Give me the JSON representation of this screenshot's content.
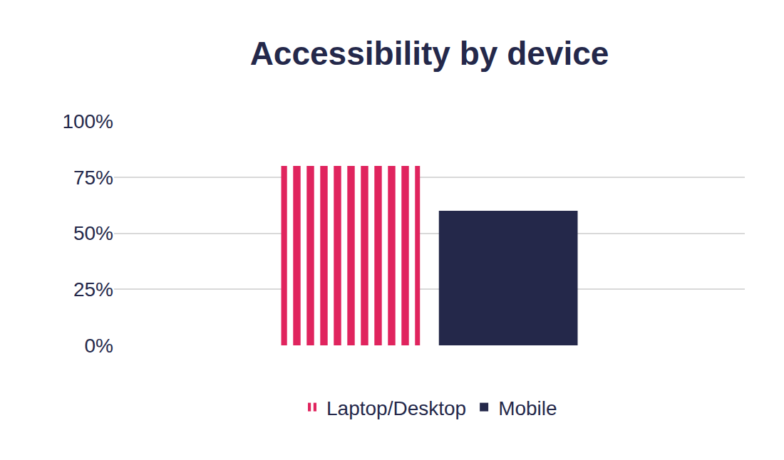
{
  "chart_data": {
    "type": "bar",
    "title": "Accessibility by device",
    "categories": [
      null
    ],
    "series": [
      {
        "name": "Laptop/Desktop",
        "color": "#e0245e",
        "marker": "striped",
        "values": [
          80
        ]
      },
      {
        "name": "Mobile",
        "color": "#24284a",
        "marker": "solid",
        "values": [
          60
        ]
      }
    ],
    "ylim": [
      0,
      100
    ],
    "yticks": [
      {
        "value": 0,
        "label": "0%"
      },
      {
        "value": 25,
        "label": "25%"
      },
      {
        "value": 50,
        "label": "50%"
      },
      {
        "value": 75,
        "label": "75%"
      },
      {
        "value": 100,
        "label": "100%"
      }
    ],
    "grid": true,
    "legend": "bottom",
    "tick_labels": "y"
  }
}
